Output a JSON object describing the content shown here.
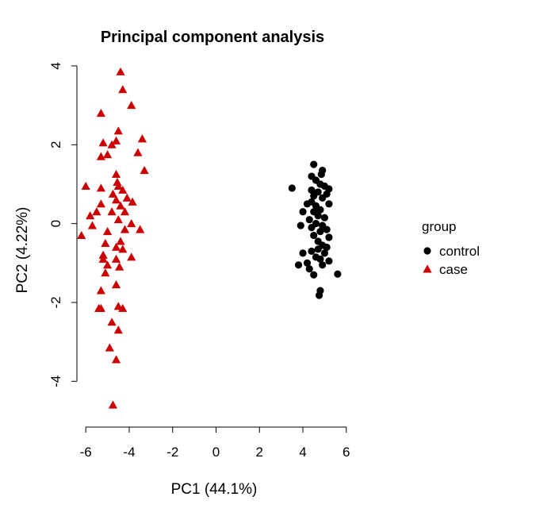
{
  "chart_data": {
    "type": "scatter",
    "title": "Principal component analysis",
    "xlabel": "PC1 (44.1%)",
    "ylabel": "PC2 (4.22%)",
    "xlim": [
      -6.3,
      6.3
    ],
    "ylim": [
      -4.9,
      4.0
    ],
    "xticks": [
      -6,
      -4,
      -2,
      0,
      2,
      4,
      6
    ],
    "yticks": [
      -4,
      -2,
      0,
      2,
      4
    ],
    "grid": false,
    "legend": {
      "title": "group",
      "placement": "right",
      "entries": [
        {
          "label": "control",
          "color": "#000000",
          "marker": "circle"
        },
        {
          "label": "case",
          "color": "#cc0000",
          "marker": "triangle"
        }
      ]
    },
    "series": [
      {
        "name": "control",
        "color": "#000000",
        "marker": "circle",
        "points": [
          [
            4.5,
            1.5
          ],
          [
            4.9,
            1.35
          ],
          [
            4.85,
            1.25
          ],
          [
            4.4,
            1.2
          ],
          [
            4.6,
            1.1
          ],
          [
            4.8,
            1.0
          ],
          [
            5.0,
            0.95
          ],
          [
            3.5,
            0.9
          ],
          [
            5.2,
            0.88
          ],
          [
            4.4,
            0.85
          ],
          [
            4.7,
            0.8
          ],
          [
            5.1,
            0.75
          ],
          [
            4.5,
            0.7
          ],
          [
            4.9,
            0.65
          ],
          [
            4.4,
            0.55
          ],
          [
            5.2,
            0.5
          ],
          [
            4.2,
            0.5
          ],
          [
            4.6,
            0.45
          ],
          [
            4.8,
            0.35
          ],
          [
            4.0,
            0.3
          ],
          [
            4.5,
            0.3
          ],
          [
            4.7,
            0.2
          ],
          [
            5.0,
            0.15
          ],
          [
            4.3,
            0.1
          ],
          [
            4.6,
            0.0
          ],
          [
            4.9,
            -0.05
          ],
          [
            3.9,
            -0.05
          ],
          [
            4.4,
            -0.1
          ],
          [
            5.1,
            -0.15
          ],
          [
            4.8,
            -0.2
          ],
          [
            4.5,
            -0.3
          ],
          [
            5.2,
            -0.35
          ],
          [
            4.7,
            -0.45
          ],
          [
            4.9,
            -0.55
          ],
          [
            5.1,
            -0.6
          ],
          [
            4.7,
            -0.65
          ],
          [
            4.4,
            -0.7
          ],
          [
            4.0,
            -0.75
          ],
          [
            5.0,
            -0.75
          ],
          [
            4.6,
            -0.85
          ],
          [
            4.8,
            -0.9
          ],
          [
            5.2,
            -0.95
          ],
          [
            4.2,
            -1.0
          ],
          [
            4.9,
            -1.05
          ],
          [
            3.8,
            -1.05
          ],
          [
            4.3,
            -1.15
          ],
          [
            4.5,
            -1.3
          ],
          [
            5.6,
            -1.28
          ],
          [
            4.8,
            -1.7
          ],
          [
            4.75,
            -1.82
          ]
        ]
      },
      {
        "name": "case",
        "color": "#cc0000",
        "marker": "triangle",
        "points": [
          [
            -4.4,
            3.85
          ],
          [
            -4.3,
            3.4
          ],
          [
            -3.9,
            3.0
          ],
          [
            -5.3,
            2.8
          ],
          [
            -4.5,
            2.35
          ],
          [
            -3.4,
            2.15
          ],
          [
            -4.6,
            2.1
          ],
          [
            -5.2,
            2.05
          ],
          [
            -4.8,
            2.0
          ],
          [
            -3.6,
            1.8
          ],
          [
            -5.0,
            1.75
          ],
          [
            -5.3,
            1.7
          ],
          [
            -3.3,
            1.35
          ],
          [
            -4.6,
            1.25
          ],
          [
            -4.55,
            1.05
          ],
          [
            -4.5,
            0.95
          ],
          [
            -6.0,
            0.95
          ],
          [
            -5.3,
            0.9
          ],
          [
            -4.3,
            0.85
          ],
          [
            -4.75,
            0.75
          ],
          [
            -4.1,
            0.65
          ],
          [
            -4.6,
            0.6
          ],
          [
            -3.85,
            0.55
          ],
          [
            -5.3,
            0.5
          ],
          [
            -4.4,
            0.45
          ],
          [
            -4.2,
            0.3
          ],
          [
            -5.5,
            0.3
          ],
          [
            -4.8,
            0.3
          ],
          [
            -5.8,
            0.2
          ],
          [
            -4.5,
            0.1
          ],
          [
            -3.9,
            0.0
          ],
          [
            -5.7,
            -0.05
          ],
          [
            -4.2,
            -0.15
          ],
          [
            -5.0,
            -0.2
          ],
          [
            -3.5,
            -0.15
          ],
          [
            -6.2,
            -0.3
          ],
          [
            -4.4,
            -0.45
          ],
          [
            -5.1,
            -0.5
          ],
          [
            -4.6,
            -0.6
          ],
          [
            -4.3,
            -0.65
          ],
          [
            -5.2,
            -0.8
          ],
          [
            -4.6,
            -0.9
          ],
          [
            -3.9,
            -0.85
          ],
          [
            -5.2,
            -0.9
          ],
          [
            -5.0,
            -1.05
          ],
          [
            -4.45,
            -1.1
          ],
          [
            -5.1,
            -1.25
          ],
          [
            -4.6,
            -1.55
          ],
          [
            -5.3,
            -1.7
          ],
          [
            -5.4,
            -2.15
          ],
          [
            -5.3,
            -2.15
          ],
          [
            -4.5,
            -2.1
          ],
          [
            -4.3,
            -2.15
          ],
          [
            -4.8,
            -2.5
          ],
          [
            -4.5,
            -2.7
          ],
          [
            -4.9,
            -3.15
          ],
          [
            -4.6,
            -3.45
          ],
          [
            -4.75,
            -4.6
          ]
        ]
      }
    ]
  }
}
